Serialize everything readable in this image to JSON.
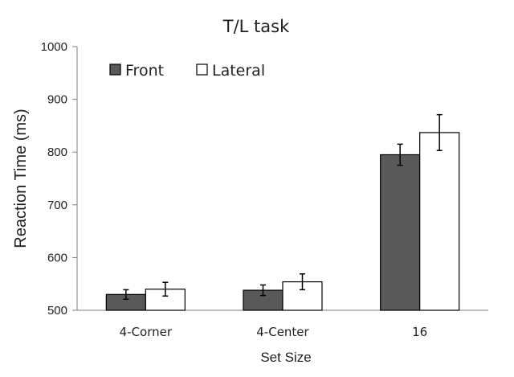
{
  "chart_data": {
    "type": "bar",
    "title": "T/L task",
    "xlabel": "Set Size",
    "ylabel": "Reaction Time (ms)",
    "categories": [
      "4-Corner",
      "4-Center",
      "16"
    ],
    "ylim": [
      500,
      1000
    ],
    "yticks": [
      500,
      600,
      700,
      800,
      900,
      1000
    ],
    "grid": false,
    "legend_position": "top-left",
    "series": [
      {
        "name": "Front",
        "values": [
          530,
          538,
          795
        ],
        "errors": [
          9,
          10,
          20
        ],
        "color": "#595959"
      },
      {
        "name": "Lateral",
        "values": [
          540,
          554,
          837
        ],
        "errors": [
          13,
          15,
          34
        ],
        "color": "#ffffff"
      }
    ]
  }
}
